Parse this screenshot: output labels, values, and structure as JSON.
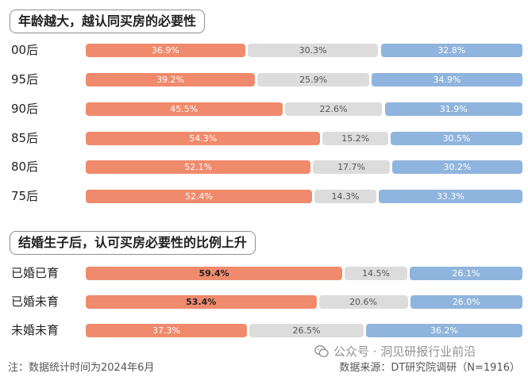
{
  "chart_data": [
    {
      "type": "bar",
      "stacked": true,
      "orientation": "horizontal",
      "title": "年龄越大，越认同买房的必要性",
      "categories": [
        "00后",
        "95后",
        "90后",
        "85后",
        "80后",
        "75后"
      ],
      "series": [
        {
          "color": "#f08a6c",
          "values": [
            36.9,
            39.2,
            45.5,
            54.3,
            52.1,
            52.4
          ],
          "labels": [
            "36.9%",
            "39.2%",
            "45.5%",
            "54.3%",
            "52.1%",
            "52.4%"
          ]
        },
        {
          "color": "#dcdcdc",
          "values": [
            30.3,
            25.9,
            22.6,
            15.2,
            17.7,
            14.3
          ],
          "labels": [
            "30.3%",
            "25.9%",
            "22.6%",
            "15.2%",
            "17.7%",
            "14.3%"
          ]
        },
        {
          "color": "#8fb4dd",
          "values": [
            32.8,
            34.9,
            31.9,
            30.5,
            30.2,
            33.3
          ],
          "labels": [
            "32.8%",
            "34.9%",
            "31.9%",
            "30.5%",
            "30.2%",
            "33.3%"
          ]
        }
      ]
    },
    {
      "type": "bar",
      "stacked": true,
      "orientation": "horizontal",
      "title": "结婚生子后，认可买房必要性的比例上升",
      "categories": [
        "已婚已育",
        "已婚未育",
        "未婚未育"
      ],
      "series": [
        {
          "color": "#f08a6c",
          "values": [
            59.4,
            53.4,
            37.3
          ],
          "labels": [
            "59.4%",
            "53.4%",
            "37.3%"
          ],
          "bold_label_rows": [
            0,
            1
          ]
        },
        {
          "color": "#dcdcdc",
          "values": [
            14.5,
            20.6,
            26.5
          ],
          "labels": [
            "14.5%",
            "20.6%",
            "26.5%"
          ]
        },
        {
          "color": "#8fb4dd",
          "values": [
            26.1,
            26.0,
            36.2
          ],
          "labels": [
            "26.1%",
            "26.0%",
            "36.2%"
          ]
        }
      ]
    }
  ],
  "footer": {
    "note": "注：数据统计时间为2024年6月",
    "source": "数据来源：DT研究院调研（N=1916）",
    "watermark": "公众号 · 洞见研报行业前沿"
  }
}
